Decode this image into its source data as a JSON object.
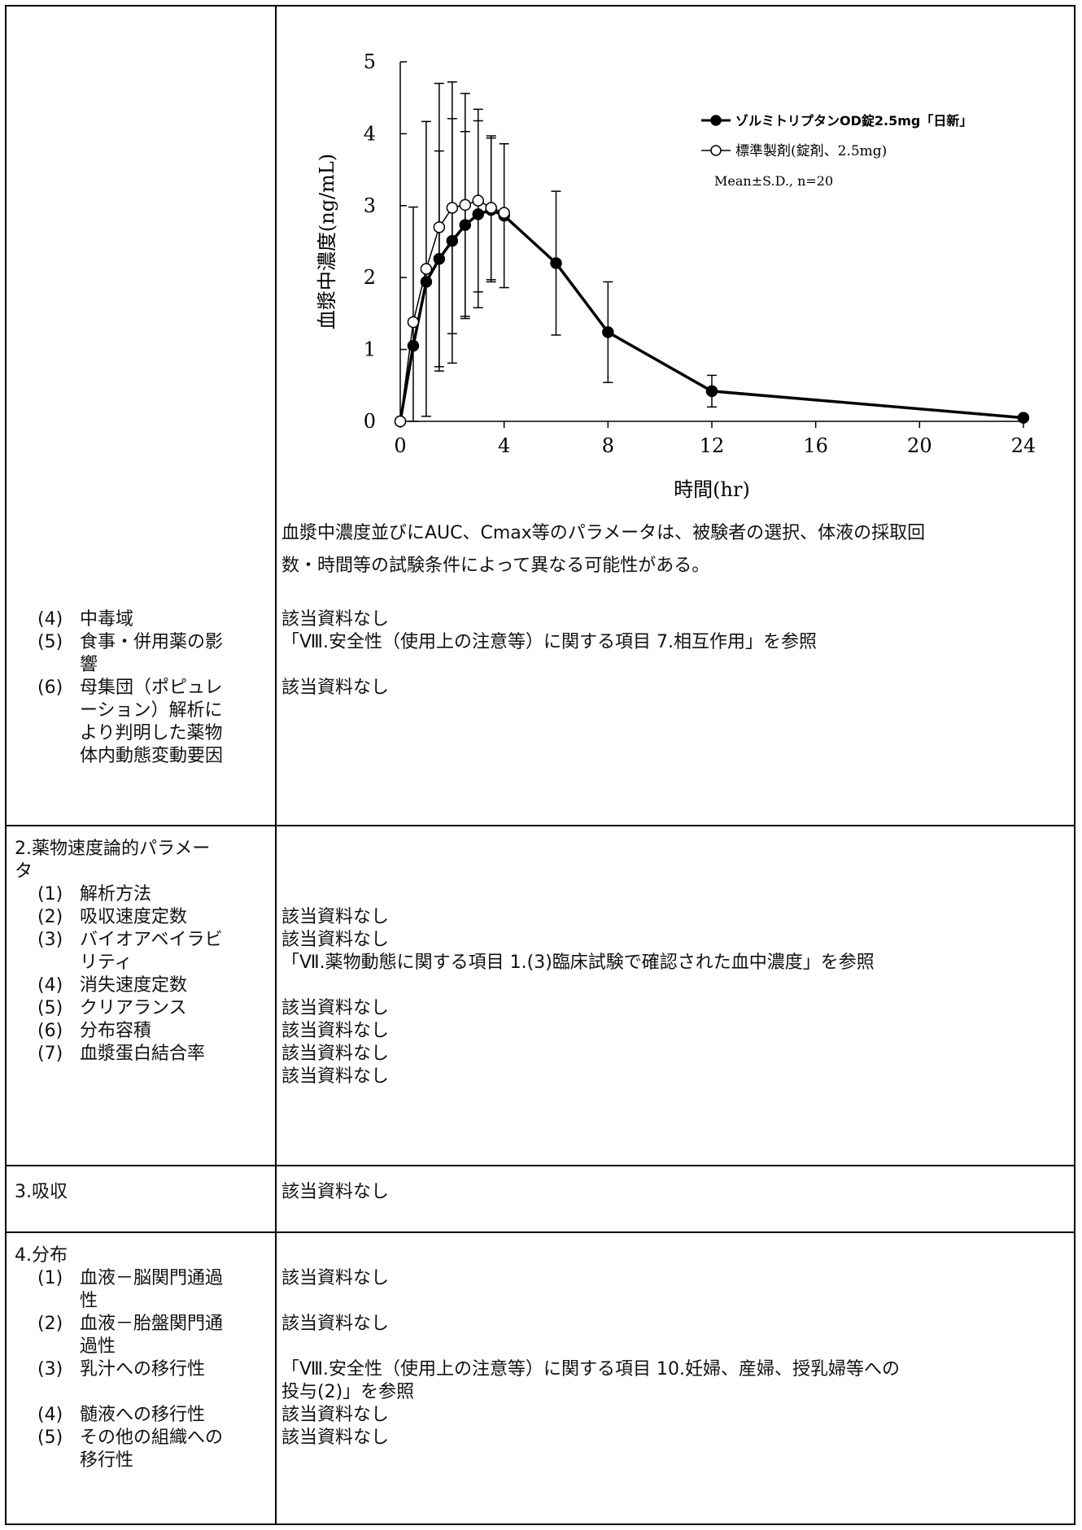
{
  "chart_data": {
    "type": "line",
    "xlabel": "時間(hr)",
    "ylabel": "血漿中濃度(ng/mL)",
    "xlim": [
      0,
      24
    ],
    "ylim": [
      0,
      5
    ],
    "x_ticks": [
      "0",
      "4",
      "8",
      "12",
      "16",
      "20",
      "24"
    ],
    "y_ticks": [
      "0",
      "1",
      "2",
      "3",
      "4",
      "5"
    ],
    "legend_position": "top-right",
    "legend_note": "Mean±S.D., n=20",
    "series": [
      {
        "name": "ゾルミトリプタンOD錠2.5mg「日新」",
        "marker": "filled-circle",
        "color": "#000000",
        "x": [
          0,
          0.5,
          1,
          1.5,
          2,
          2.5,
          3,
          3.5,
          4,
          6,
          8,
          12,
          24
        ],
        "y": [
          0,
          1.05,
          1.94,
          2.26,
          2.51,
          2.73,
          2.88,
          2.94,
          2.86,
          2.2,
          1.24,
          0.42,
          0.05
        ],
        "err": [
          0,
          0,
          0,
          1.5,
          1.7,
          1.3,
          1.3,
          1.0,
          1.0,
          1.0,
          0.7,
          0.22,
          0.03
        ]
      },
      {
        "name": "標準製剤(錠剤、2.5mg)",
        "marker": "open-circle",
        "color": "#000000",
        "x": [
          0,
          0.5,
          1,
          1.5,
          2,
          2.5,
          3,
          3.5,
          4
        ],
        "y": [
          0,
          1.38,
          2.12,
          2.7,
          2.97,
          3.01,
          3.07,
          2.97,
          2.9
        ],
        "err": [
          0,
          1.6,
          2.05,
          2.0,
          1.75,
          1.55,
          1.27,
          1.0,
          0
        ]
      }
    ]
  },
  "note_line1": "血漿中濃度並びにAUC、Cmax等のパラメータは、被験者の選択、体液の採取回",
  "note_line2": "数・時間等の試験条件によって異なる可能性がある。",
  "sec1": {
    "items": [
      {
        "num": "(4)",
        "label": "中毒域",
        "value": "該当資料なし"
      },
      {
        "num": "(5)",
        "label": "食事・併用薬の影響",
        "value": "「Ⅷ.安全性（使用上の注意等）に関する項目 7.相互作用」を参照"
      },
      {
        "num": "(6)",
        "label": "母集団（ポピュレーション）解析により判明した薬物体内動態変動要因",
        "value": "該当資料なし"
      }
    ]
  },
  "sec2": {
    "title": "2.薬物速度論的パラメータ",
    "items": [
      {
        "num": "(1)",
        "label": "解析方法",
        "value": "該当資料なし"
      },
      {
        "num": "(2)",
        "label": "吸収速度定数",
        "value": "該当資料なし"
      },
      {
        "num": "(3)",
        "label": "バイオアベイラビリティ",
        "value": "「Ⅶ.薬物動態に関する項目 1.(3)臨床試験で確認された血中濃度」を参照"
      },
      {
        "num": "(4)",
        "label": "消失速度定数",
        "value": "該当資料なし"
      },
      {
        "num": "(5)",
        "label": "クリアランス",
        "value": "該当資料なし"
      },
      {
        "num": "(6)",
        "label": "分布容積",
        "value": "該当資料なし"
      },
      {
        "num": "(7)",
        "label": "血漿蛋白結合率",
        "value": "該当資料なし"
      }
    ]
  },
  "sec3": {
    "title": "3.吸収",
    "value": "該当資料なし"
  },
  "sec4": {
    "title": "4.分布",
    "items": [
      {
        "num": "(1)",
        "label": "血液－脳関門通過性",
        "value": "該当資料なし"
      },
      {
        "num": "(2)",
        "label": "血液－胎盤関門通過性",
        "value": "該当資料なし"
      },
      {
        "num": "(3)",
        "label": "乳汁への移行性",
        "value": "「Ⅷ.安全性（使用上の注意等）に関する項目 10.妊婦、産婦、授乳婦等への",
        "value2": "投与(2)」を参照"
      },
      {
        "num": "(4)",
        "label": "髄液への移行性",
        "value": "該当資料なし"
      },
      {
        "num": "(5)",
        "label": "その他の組織への移行性",
        "value": "該当資料なし"
      }
    ]
  }
}
